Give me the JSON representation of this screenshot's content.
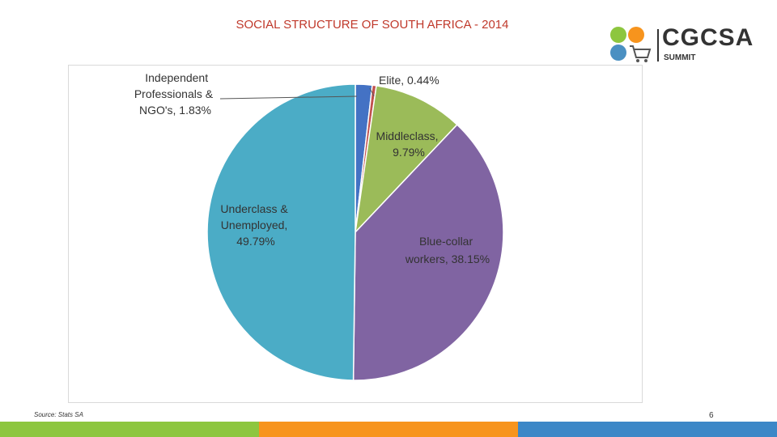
{
  "slide": {
    "title": "SOCIAL STRUCTURE OF SOUTH AFRICA - 2014",
    "source": "Source: Stats SA",
    "page_number": "6"
  },
  "logo": {
    "wordmark": "CGCSA",
    "subtitle": "SUMMIT",
    "colors": [
      "#8dc63f",
      "#f7941d",
      "#4a90c2"
    ]
  },
  "footer": {
    "colors": [
      "#8dc63f",
      "#f7941d",
      "#3c87c7"
    ]
  },
  "chart_data": {
    "type": "pie",
    "title": "",
    "start_angle_deg": 0,
    "direction": "clockwise",
    "slices": [
      {
        "label": "Independent Professionals & NGO's, 1.83%",
        "value": 1.83,
        "color": "#4472c4"
      },
      {
        "label": "Elite, 0.44%",
        "value": 0.44,
        "color": "#c0504d"
      },
      {
        "label": "Middleclass, 9.79%",
        "value": 9.79,
        "color": "#9bbb59"
      },
      {
        "label": "Blue-collar workers, 38.15%",
        "value": 38.15,
        "color": "#8064a2"
      },
      {
        "label": "Underclass & Unemployed, 49.79%",
        "value": 49.79,
        "color": "#4bacc6"
      }
    ]
  }
}
